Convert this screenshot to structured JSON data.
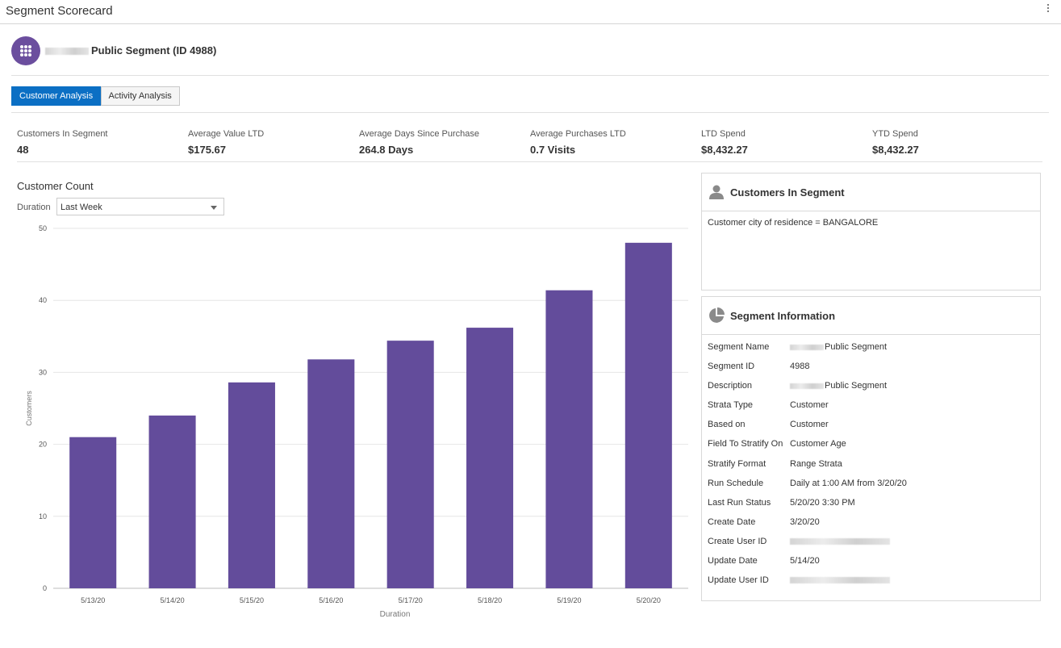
{
  "app": {
    "title": "Segment Scorecard"
  },
  "segment": {
    "title": "Public Segment (ID 4988)"
  },
  "tabs": [
    {
      "label": "Customer Analysis",
      "active": true
    },
    {
      "label": "Activity Analysis",
      "active": false
    }
  ],
  "kpis": [
    {
      "label": "Customers In Segment",
      "value": "48"
    },
    {
      "label": "Average Value LTD",
      "value": "$175.67"
    },
    {
      "label": "Average Days Since Purchase",
      "value": "264.8 Days"
    },
    {
      "label": "Average Purchases LTD",
      "value": "0.7 Visits"
    },
    {
      "label": "LTD Spend",
      "value": "$8,432.27"
    },
    {
      "label": "YTD Spend",
      "value": "$8,432.27"
    }
  ],
  "customer_count": {
    "title": "Customer Count",
    "duration_label": "Duration",
    "duration_value": "Last Week"
  },
  "chart_data": {
    "type": "bar",
    "categories": [
      "5/13/20",
      "5/14/20",
      "5/15/20",
      "5/16/20",
      "5/17/20",
      "5/18/20",
      "5/19/20",
      "5/20/20"
    ],
    "values": [
      21,
      24,
      28.6,
      31.8,
      34.4,
      36.2,
      41.4,
      48
    ],
    "xlabel": "Duration",
    "ylabel": "Customers",
    "ylim": [
      0,
      50
    ],
    "yticks": [
      0,
      10,
      20,
      30,
      40,
      50
    ],
    "color": "#634c9b",
    "grid": true
  },
  "customers_panel": {
    "title": "Customers In Segment",
    "rule": "Customer city of residence = BANGALORE"
  },
  "info_panel": {
    "title": "Segment Information",
    "rows": [
      {
        "key": "Segment Name",
        "value": "Public Segment"
      },
      {
        "key": "Segment ID",
        "value": "4988"
      },
      {
        "key": "Description",
        "value": "Public Segment"
      },
      {
        "key": "Strata Type",
        "value": "Customer"
      },
      {
        "key": "Based on",
        "value": "Customer"
      },
      {
        "key": "Field To Stratify On",
        "value": "Customer Age"
      },
      {
        "key": "Stratify Format",
        "value": "Range Strata"
      },
      {
        "key": "Run Schedule",
        "value": "Daily at 1:00 AM from 3/20/20"
      },
      {
        "key": "Last Run Status",
        "value": "5/20/20 3:30 PM"
      },
      {
        "key": "Create Date",
        "value": "3/20/20"
      },
      {
        "key": "Create User ID",
        "value": ""
      },
      {
        "key": "Update Date",
        "value": "5/14/20"
      },
      {
        "key": "Update User ID",
        "value": ""
      }
    ]
  },
  "colors": {
    "accent": "#0b6fc4",
    "segment_icon": "#6b4e9e",
    "bar": "#634c9b"
  },
  "icons": {
    "segment": "grid-dots-icon",
    "customers": "person-icon",
    "info": "pie-chart-icon",
    "menu": "kebab-menu-icon"
  }
}
